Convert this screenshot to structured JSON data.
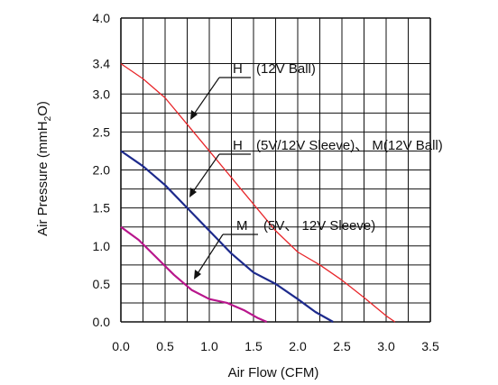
{
  "chart_data": {
    "type": "line",
    "xlabel": "Air Flow (CFM)",
    "ylabel": "Air Pressure (mmH2O)",
    "ylabel_parts": {
      "before": "Air Pressure (mmH",
      "sub": "2",
      "after": "O)"
    },
    "xlim": [
      0,
      3.5
    ],
    "ylim": [
      0,
      4.0
    ],
    "grid": true,
    "x_ticks": [
      "0.0",
      "0.5",
      "1.0",
      "1.5",
      "2.0",
      "2.5",
      "3.0",
      "3.5"
    ],
    "y_ticks": [
      "0.0",
      "0.5",
      "1.0",
      "1.5",
      "2.0",
      "2.5",
      "3.0",
      "3.4",
      "4.0"
    ],
    "y_tick_values": [
      0.0,
      0.5,
      1.0,
      1.5,
      2.0,
      2.5,
      3.0,
      3.4,
      4.0
    ],
    "series": [
      {
        "name": "H (12V Ball)",
        "color": "#e8262a",
        "x": [
          0.0,
          0.25,
          0.5,
          0.75,
          1.0,
          1.25,
          1.5,
          1.75,
          2.0,
          2.25,
          2.5,
          2.75,
          3.0,
          3.1
        ],
        "y": [
          3.4,
          3.2,
          2.95,
          2.6,
          2.25,
          1.9,
          1.55,
          1.2,
          0.92,
          0.75,
          0.55,
          0.32,
          0.08,
          0.0
        ]
      },
      {
        "name": "H (5V/12V Sleeve)、M(12V Ball)",
        "color": "#1d2a8c",
        "x": [
          0.0,
          0.25,
          0.5,
          0.75,
          1.0,
          1.25,
          1.5,
          1.75,
          2.0,
          2.2,
          2.4
        ],
        "y": [
          2.25,
          2.05,
          1.8,
          1.5,
          1.2,
          0.9,
          0.65,
          0.5,
          0.3,
          0.13,
          0.0
        ]
      },
      {
        "name": "M (5V、12V Sleeve)",
        "color": "#b8168c",
        "x": [
          0.0,
          0.2,
          0.4,
          0.6,
          0.8,
          1.0,
          1.2,
          1.4,
          1.55,
          1.65
        ],
        "y": [
          1.25,
          1.08,
          0.85,
          0.62,
          0.42,
          0.3,
          0.25,
          0.15,
          0.05,
          0.0
        ]
      }
    ],
    "annotations": [
      {
        "label_main": "H",
        "label_rest": "(12V Ball)"
      },
      {
        "label_main": "H",
        "label_rest": "(5V/12V Sleeve)、 M(12V Ball)"
      },
      {
        "label_main": "M",
        "label_rest": "(5V、 12V Sleeve)"
      }
    ]
  }
}
